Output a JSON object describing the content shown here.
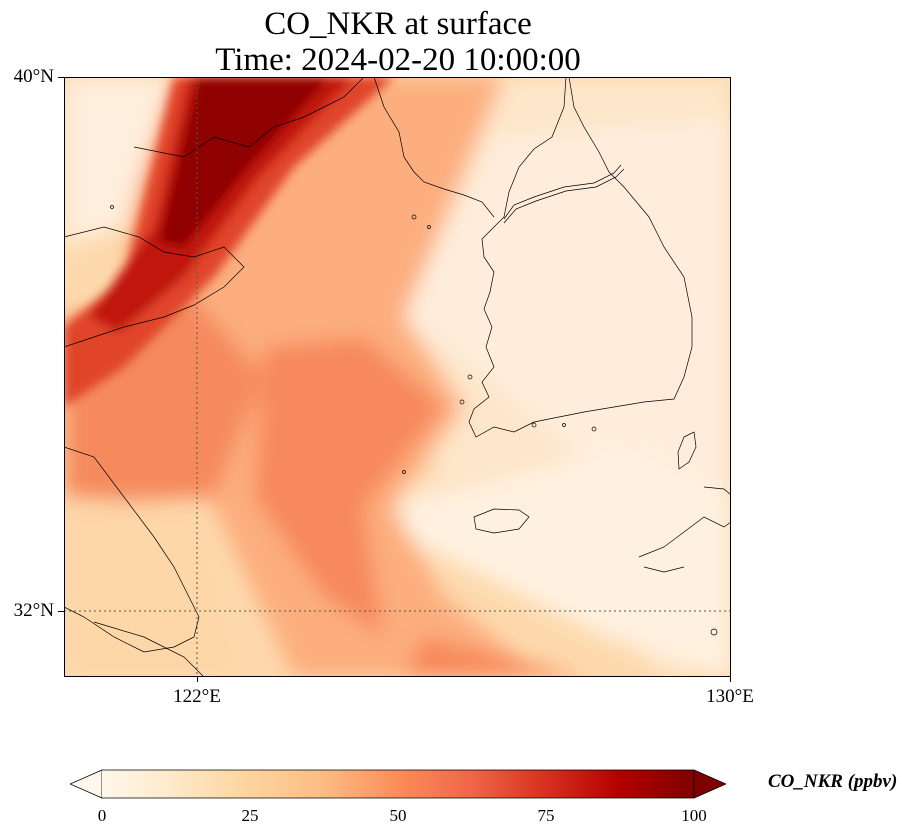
{
  "title": {
    "line1": "CO_NKR at surface",
    "line2": "Time: 2024-02-20 10:00:00"
  },
  "axes": {
    "y_ticks": [
      "40°N",
      "32°N"
    ],
    "x_ticks": [
      "122°E",
      "130°E"
    ]
  },
  "colorbar": {
    "label": "CO_NKR (ppbv)",
    "ticks": [
      "0",
      "25",
      "50",
      "75",
      "100"
    ],
    "colormap": "OrRd",
    "range": [
      0,
      100
    ],
    "extend": "both"
  },
  "map_extent": {
    "lon": [
      120,
      130
    ],
    "lat": [
      31,
      40
    ]
  },
  "gridlines": {
    "lon": [
      122
    ],
    "lat": [
      32
    ]
  },
  "colors": {
    "cmap_low": "#fff7ec",
    "cmap_mid": "#fdbb84",
    "cmap_high": "#7f0000"
  }
}
